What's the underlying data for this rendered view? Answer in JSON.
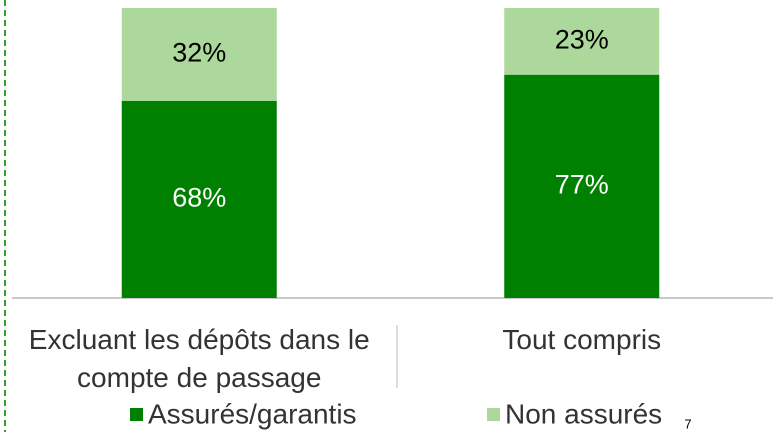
{
  "chart_data": {
    "type": "bar",
    "stacked": true,
    "categories": [
      "Excluant les dépôts dans le compte de passage",
      "Tout compris"
    ],
    "series": [
      {
        "name": "Assurés/garantis",
        "color": "#008000",
        "label_color": "#ffffff",
        "values": [
          68,
          77
        ],
        "value_labels": [
          "68%",
          "77%"
        ]
      },
      {
        "name": "Non assurés",
        "color": "#acd89c",
        "label_color": "#000000",
        "values": [
          32,
          23
        ],
        "value_labels": [
          "32%",
          "23%"
        ]
      }
    ],
    "ylim": [
      0,
      100
    ],
    "page_number": "7"
  }
}
